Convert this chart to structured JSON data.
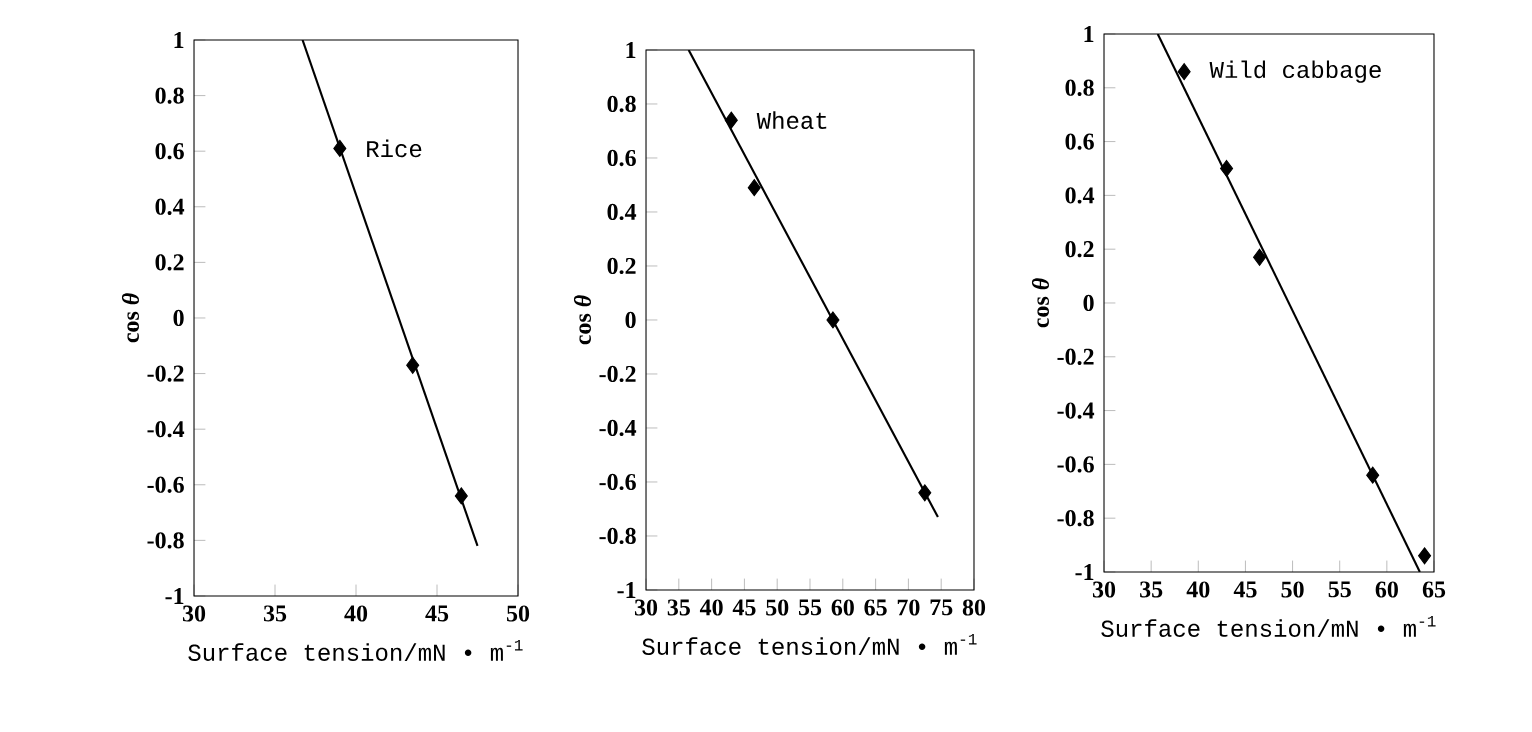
{
  "chart_data": [
    {
      "type": "scatter",
      "xlabel": "Surface tension/mN • m$^{-1}$",
      "ylabel": "cos *θ*",
      "xlim": [
        30,
        50
      ],
      "ylim": [
        -1,
        1
      ],
      "xticks": [
        30,
        35,
        40,
        45,
        50
      ],
      "yticks": [
        -1,
        -0.8,
        -0.6,
        -0.4,
        -0.2,
        0,
        0.2,
        0.4,
        0.6,
        0.8,
        1
      ],
      "series": [
        {
          "name": "Rice",
          "marker": "diamond",
          "color": "#000000",
          "x": [
            39,
            43.5,
            46.5
          ],
          "values": [
            0.61,
            -0.17,
            -0.64
          ]
        },
        {
          "type": "line",
          "color": "#000000",
          "x": [
            36.7,
            47.5
          ],
          "values": [
            1,
            -0.82
          ]
        }
      ]
    },
    {
      "type": "scatter",
      "xlabel": "Surface tension/mN • m$^{-1}$",
      "ylabel": "cos *θ*",
      "xlim": [
        30,
        80
      ],
      "ylim": [
        -1,
        1
      ],
      "xticks": [
        30,
        35,
        40,
        45,
        50,
        55,
        60,
        65,
        70,
        75,
        80
      ],
      "yticks": [
        -1,
        -0.8,
        -0.6,
        -0.4,
        -0.2,
        0,
        0.2,
        0.4,
        0.6,
        0.8,
        1
      ],
      "series": [
        {
          "name": "Wheat",
          "marker": "diamond",
          "color": "#000000",
          "x": [
            43,
            46.5,
            58.5,
            72.5
          ],
          "values": [
            0.74,
            0.49,
            0.0,
            -0.64
          ]
        },
        {
          "type": "line",
          "color": "#000000",
          "x": [
            36.5,
            74.5
          ],
          "values": [
            1,
            -0.73
          ]
        }
      ]
    },
    {
      "type": "scatter",
      "xlabel": "Surface tension/mN • m$^{-1}$",
      "ylabel": "cos *θ*",
      "xlim": [
        30,
        65
      ],
      "ylim": [
        -1,
        1
      ],
      "xticks": [
        30,
        35,
        40,
        45,
        50,
        55,
        60,
        65
      ],
      "yticks": [
        -1,
        -0.8,
        -0.6,
        -0.4,
        -0.2,
        0,
        0.2,
        0.4,
        0.6,
        0.8,
        1
      ],
      "series": [
        {
          "name": "Wild cabbage",
          "marker": "diamond",
          "color": "#000000",
          "x": [
            38.5,
            43,
            46.5,
            58.5,
            64
          ],
          "values": [
            0.86,
            0.5,
            0.17,
            -0.64,
            -0.94
          ]
        },
        {
          "type": "line",
          "color": "#000000",
          "x": [
            35.7,
            63.5
          ],
          "values": [
            1,
            -1
          ]
        }
      ]
    }
  ]
}
